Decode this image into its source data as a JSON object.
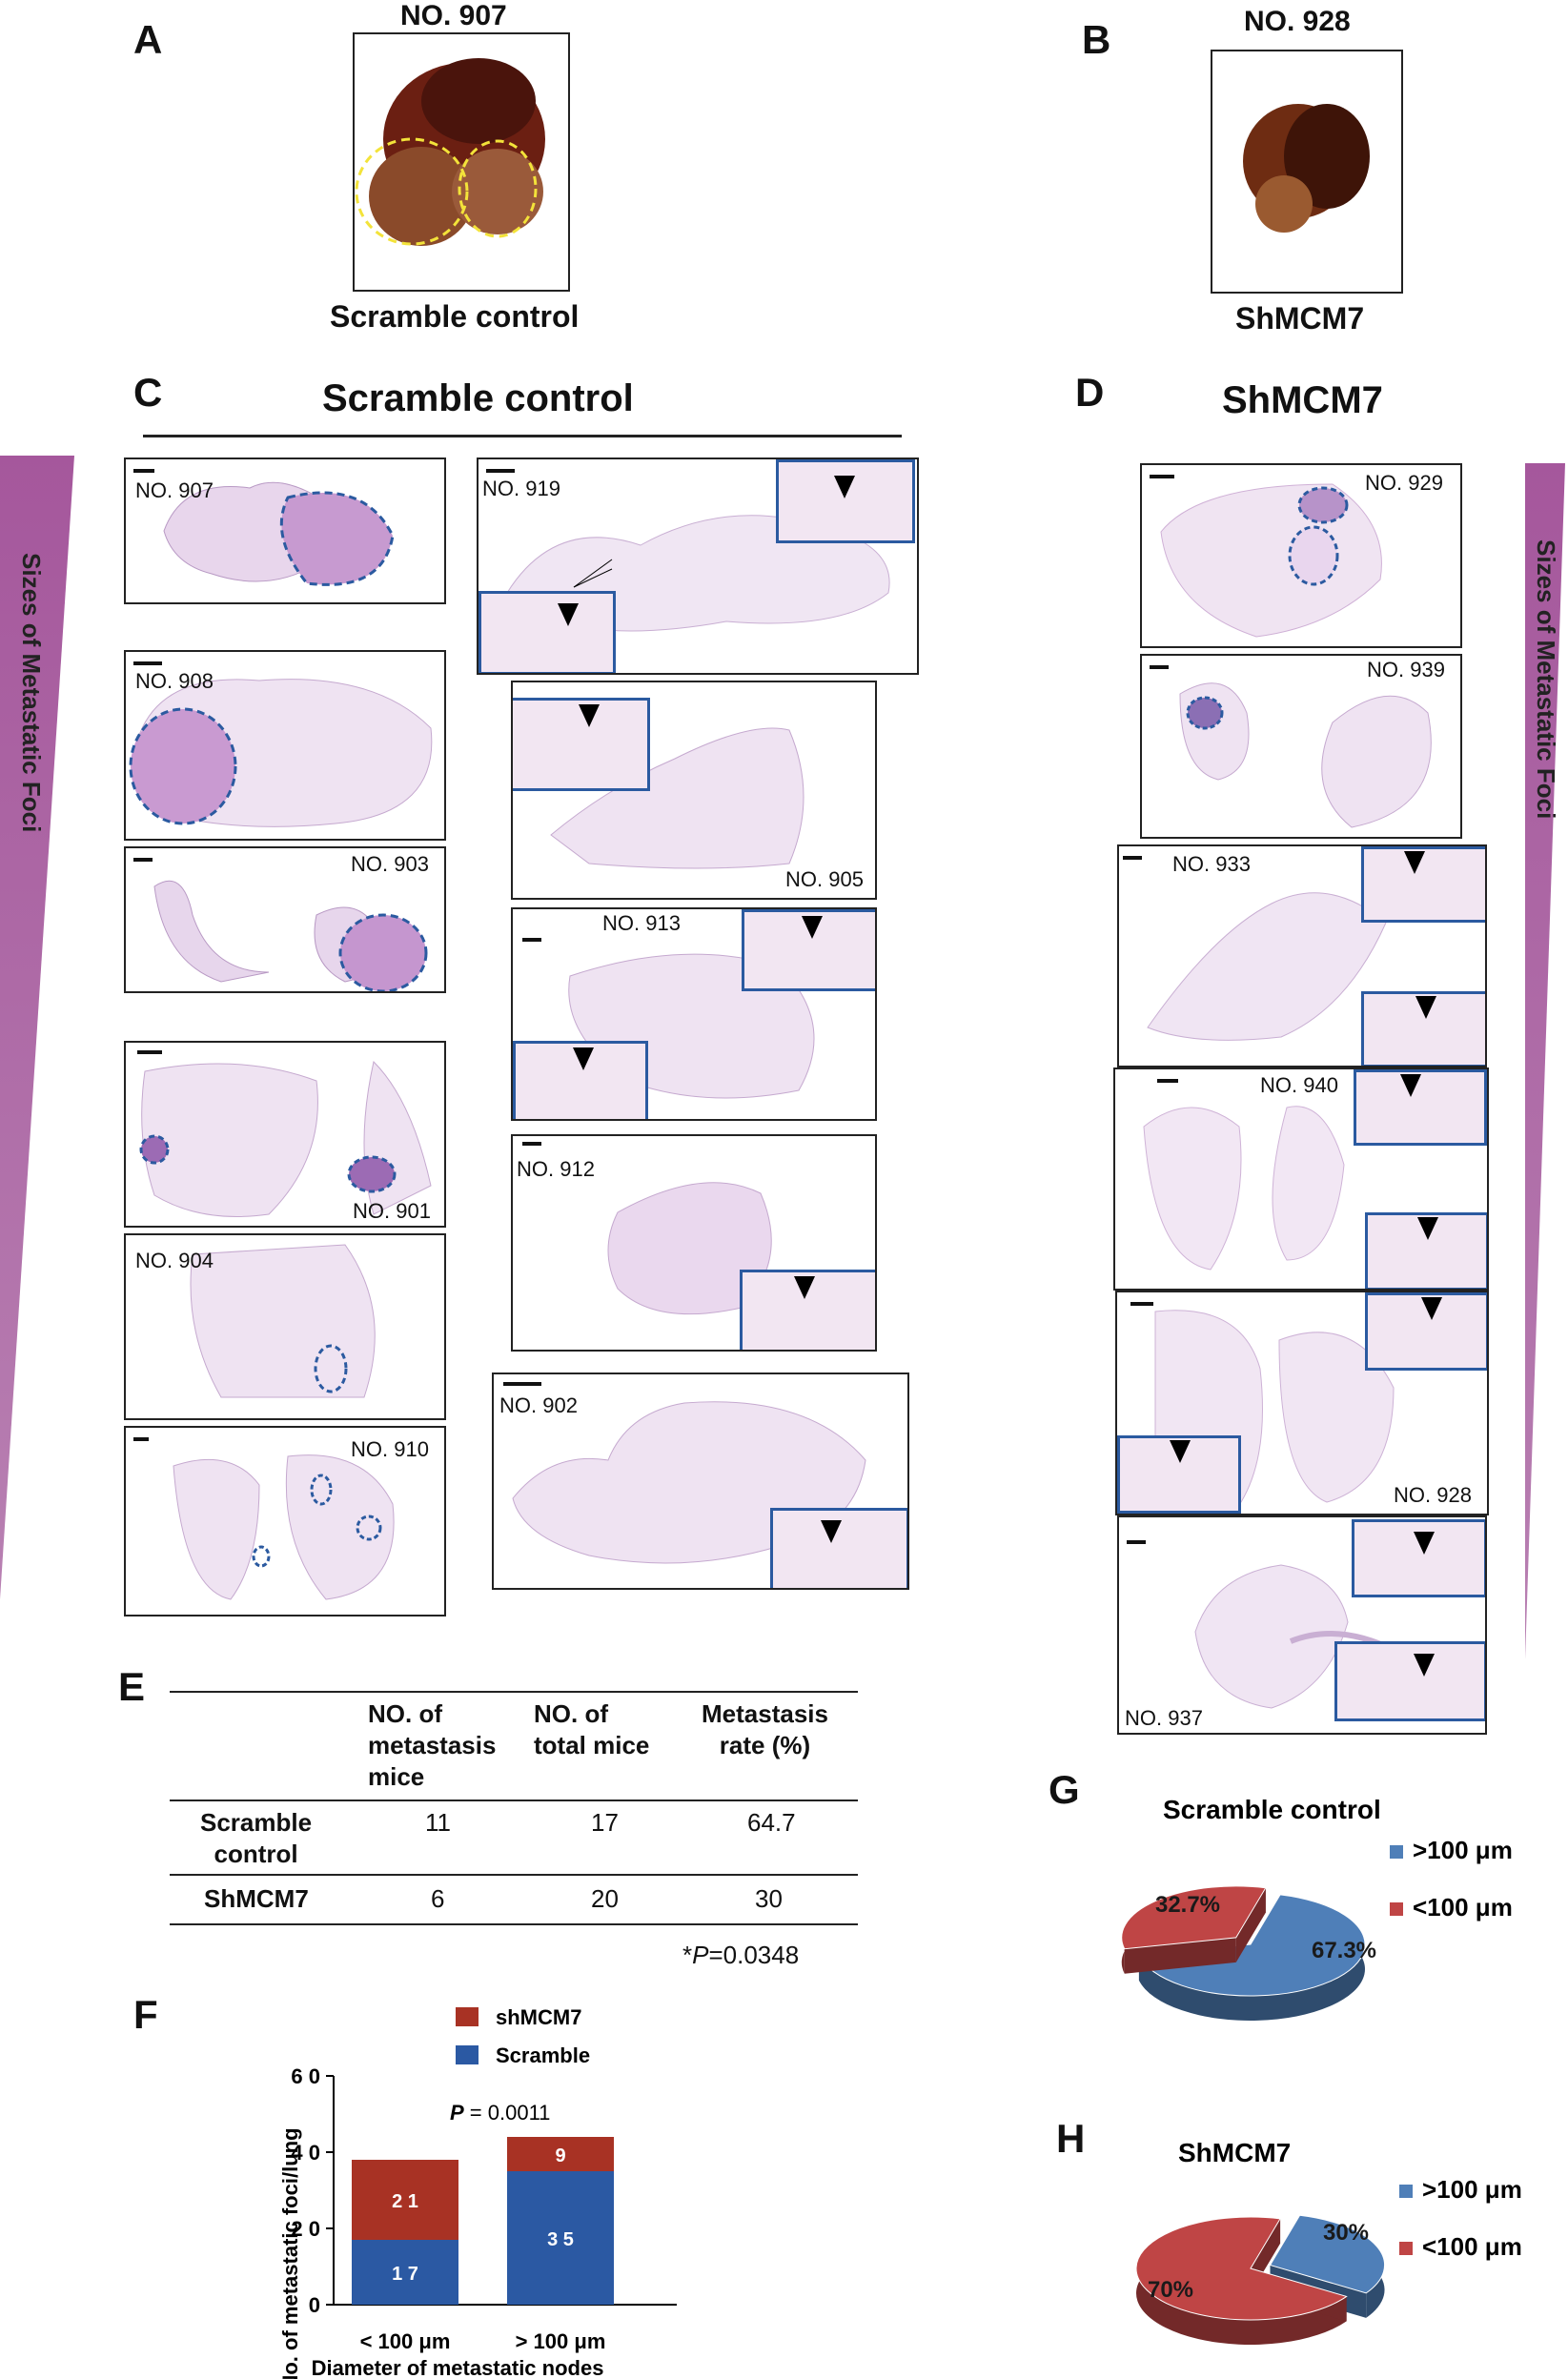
{
  "panels": {
    "A": {
      "letter": "A",
      "title": "NO. 907",
      "caption": "Scramble control"
    },
    "B": {
      "letter": "B",
      "title": "NO. 928",
      "caption": "ShMCM7"
    },
    "C": {
      "letter": "C",
      "title": "Scramble control",
      "side_label": "Sizes of Metastatic Foci",
      "slides": [
        "NO. 907",
        "NO. 908",
        "NO. 903",
        "NO. 901",
        "NO. 904",
        "NO. 910",
        "NO. 919",
        "NO. 905",
        "NO. 913",
        "NO. 912",
        "NO. 902"
      ]
    },
    "D": {
      "letter": "D",
      "title": "ShMCM7",
      "side_label": "Sizes of Metastatic Foci",
      "slides": [
        "NO. 929",
        "NO. 939",
        "NO. 933",
        "NO. 940",
        "NO. 928",
        "NO. 937"
      ]
    },
    "E": {
      "letter": "E",
      "headers": [
        "NO. of\nmetastasis\nmice",
        "NO. of\ntotal mice",
        "Metastasis\nrate (%)"
      ],
      "rows": [
        {
          "label": "Scramble\ncontrol",
          "values": [
            "11",
            "17",
            "64.7"
          ]
        },
        {
          "label": "ShMCM7",
          "values": [
            "6",
            "20",
            "30"
          ]
        }
      ],
      "pvalue_prefix": "*",
      "pvalue_italic": "P",
      "pvalue_suffix": "=0.0348"
    },
    "F": {
      "letter": "F"
    },
    "G": {
      "letter": "G"
    },
    "H": {
      "letter": "H"
    }
  },
  "chart_data": [
    {
      "type": "bar",
      "stacked": true,
      "categories": [
        "< 100 μm",
        "> 100 μm"
      ],
      "series": [
        {
          "name": "Scramble",
          "values": [
            17,
            35
          ],
          "color": "#2b59a3"
        },
        {
          "name": "shMCM7",
          "values": [
            21,
            9
          ],
          "color": "#a83224"
        }
      ],
      "ylim": [
        0,
        60
      ],
      "yticks": [
        "0",
        "2 0",
        "4 0",
        "6 0"
      ],
      "value_labels": {
        "Scramble": [
          "1 7",
          "3 5"
        ],
        "shMCM7": [
          "2 1",
          "9"
        ]
      },
      "xlabel": "Diameter of metastatic nodes",
      "ylabel": "No. of metastatic foci/lung",
      "annotation_italic": "P",
      "annotation_rest": " = 0.0011"
    },
    {
      "type": "pie",
      "title": "Scramble control",
      "labels": [
        ">100 μm",
        "<100 μm"
      ],
      "values": [
        67.3,
        32.7
      ],
      "value_labels": [
        "67.3%",
        "32.7%"
      ],
      "colors": [
        "#4f7fb8",
        "#bf4545"
      ]
    },
    {
      "type": "pie",
      "title": "ShMCM7",
      "labels": [
        ">100 μm",
        "<100 μm"
      ],
      "values": [
        30,
        70
      ],
      "value_labels": [
        "30%",
        "70%"
      ],
      "colors": [
        "#4f7fb8",
        "#bf4545"
      ]
    }
  ]
}
